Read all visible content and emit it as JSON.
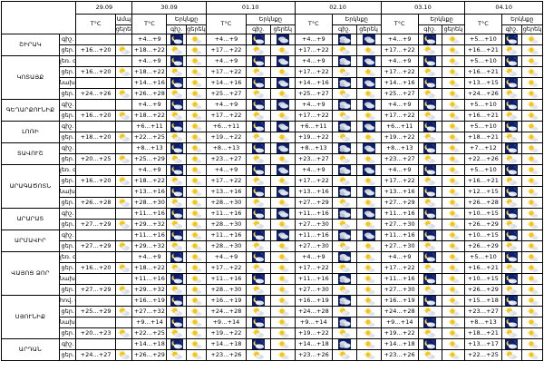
{
  "header": {
    "dates": [
      "29.09",
      "30.09",
      "01.10",
      "02.10",
      "03.10",
      "04.10"
    ],
    "temp_label": "T°C",
    "cloud_label": "Ամպ",
    "cloud_label_full": "Երկնքը",
    "day_short": "ցերեկ",
    "night_short": "գիշ."
  },
  "row_labels": {
    "night": "գիշ.",
    "day": "ցեր."
  },
  "regions": [
    {
      "name": "ՇԻՐԱԿ",
      "subs": [
        {
          "sub": "",
          "rows": [
            {
              "dn": "night",
              "t": [
                "",
                "+4…+9",
                "+4…+9",
                "+4…+9",
                "+4…+9",
                "+5…+10"
              ],
              "i": [
                "",
                "mc",
                "mc",
                "pc",
                "mc",
                "mc"
              ],
              "i2": [
                "",
                "sun",
                "cl",
                "cl",
                "sun",
                "sun"
              ]
            },
            {
              "dn": "day",
              "t": [
                "+16…+20",
                "+18…+22",
                "+17…+22",
                "+17…+22",
                "+17…+22",
                "+16…+21"
              ],
              "i": [
                "ps",
                "ps",
                "ps",
                "ps",
                "ps",
                "ps"
              ]
            }
          ]
        }
      ]
    },
    {
      "name": "ԿՈՏԱՅՔ",
      "subs": [
        {
          "sub": "լեռ.",
          "rows": [
            {
              "dn": "night",
              "t": [
                "",
                "+4…+9",
                "+4…+9",
                "+4…+9",
                "+4…+9",
                "+5…+10"
              ],
              "i": [
                "",
                "mc",
                "mc",
                "pc",
                "mc",
                "mc"
              ],
              "i2": [
                "",
                "sun",
                "cl",
                "cl",
                "sun",
                "sun"
              ]
            },
            {
              "dn": "day",
              "t": [
                "+16…+20",
                "+18…+22",
                "+17…+22",
                "+17…+22",
                "+17…+22",
                "+16…+21"
              ],
              "i": [
                "ps",
                "ps",
                "ps",
                "ps",
                "ps",
                "ps"
              ]
            }
          ]
        },
        {
          "sub": "նախ.",
          "rows": [
            {
              "dn": "night",
              "t": [
                "",
                "+14…+16",
                "+14…+16",
                "+14…+16",
                "+14…+16",
                "+13…+15"
              ],
              "i": [
                "",
                "mc",
                "mc",
                "pc",
                "mc",
                "mc"
              ],
              "i2": [
                "",
                "sun",
                "cl",
                "cl",
                "sun",
                "sun"
              ]
            },
            {
              "dn": "day",
              "t": [
                "+24…+26",
                "+26…+28",
                "+25…+27",
                "+25…+27",
                "+25…+27",
                "+24…+26"
              ],
              "i": [
                "ps",
                "ps",
                "ps",
                "ps",
                "ps",
                "ps"
              ]
            }
          ]
        }
      ]
    },
    {
      "name": "ԳԵՂԱՐՔՈՒՆԻՔ",
      "subs": [
        {
          "sub": "",
          "rows": [
            {
              "dn": "night",
              "t": [
                "",
                "+4…+9",
                "+4…+9",
                "+4…+9",
                "+4…+9",
                "+5…+10"
              ],
              "i": [
                "",
                "mc",
                "mc",
                "pc",
                "mc",
                "mc"
              ],
              "i2": [
                "",
                "sun",
                "cl",
                "cl",
                "sun",
                "sun"
              ]
            },
            {
              "dn": "day",
              "t": [
                "+16…+20",
                "+18…+22",
                "+17…+22",
                "+17…+22",
                "+17…+22",
                "+16…+21"
              ],
              "i": [
                "ps",
                "ps",
                "ps",
                "ps",
                "ps",
                "ps"
              ]
            }
          ]
        }
      ]
    },
    {
      "name": "ԼՈՌԻ",
      "subs": [
        {
          "sub": "",
          "rows": [
            {
              "dn": "night",
              "t": [
                "",
                "+6…+11",
                "+6…+11",
                "+6…+11",
                "+6…+11",
                "+5…+10"
              ],
              "i": [
                "",
                "mc",
                "mc",
                "pc",
                "mc",
                "mc"
              ],
              "i2": [
                "",
                "sun",
                "cl",
                "cl",
                "sun",
                "sun"
              ]
            },
            {
              "dn": "day",
              "t": [
                "+18…+20",
                "+22…+25",
                "+19…+22",
                "+19…+22",
                "+19…+22",
                "+18…+21"
              ],
              "i": [
                "ps",
                "ps",
                "ps",
                "ps",
                "ps",
                "ps"
              ]
            }
          ]
        }
      ]
    },
    {
      "name": "ՏԱՎՈՒՇ",
      "subs": [
        {
          "sub": "",
          "rows": [
            {
              "dn": "night",
              "t": [
                "",
                "+8…+13",
                "+8…+13",
                "+8…+13",
                "+8…+13",
                "+7…+12"
              ],
              "i": [
                "",
                "mc",
                "mc",
                "pc",
                "mc",
                "mc"
              ],
              "i2": [
                "",
                "sun",
                "cl",
                "cl",
                "sun",
                "sun"
              ]
            },
            {
              "dn": "day",
              "t": [
                "+20…+25",
                "+25…+29",
                "+23…+27",
                "+23…+27",
                "+23…+27",
                "+22…+26"
              ],
              "i": [
                "ps",
                "ps",
                "ps",
                "ps",
                "ps",
                "ps"
              ]
            }
          ]
        }
      ]
    },
    {
      "name": "ԱՐԱԳԱԾՈՏՆ",
      "subs": [
        {
          "sub": "լեռ.",
          "rows": [
            {
              "dn": "night",
              "t": [
                "",
                "+4…+9",
                "+4…+9",
                "+4…+9",
                "+4…+9",
                "+5…+10"
              ],
              "i": [
                "",
                "mc",
                "mc",
                "pc",
                "mc",
                "mc"
              ],
              "i2": [
                "",
                "sun",
                "cl",
                "cl",
                "sun",
                "sun"
              ]
            },
            {
              "dn": "day",
              "t": [
                "+16…+20",
                "+18…+22",
                "+17…+22",
                "+17…+22",
                "+17…+22",
                "+16…+21"
              ],
              "i": [
                "ps",
                "ps",
                "ps",
                "ps",
                "ps",
                "ps"
              ]
            }
          ]
        },
        {
          "sub": "նախ.",
          "rows": [
            {
              "dn": "night",
              "t": [
                "",
                "+13…+16",
                "+13…+16",
                "+13…+16",
                "+13…+16",
                "+12…+15"
              ],
              "i": [
                "",
                "mc",
                "mc",
                "pc",
                "mc",
                "mc"
              ],
              "i2": [
                "",
                "sun",
                "cl",
                "cl",
                "sun",
                "sun"
              ]
            },
            {
              "dn": "day",
              "t": [
                "+26…+28",
                "+28…+30",
                "+28…+30",
                "+27…+29",
                "+27…+29",
                "+26…+28"
              ],
              "i": [
                "ps",
                "ps",
                "ps",
                "ps",
                "ps",
                "ps"
              ]
            }
          ]
        }
      ]
    },
    {
      "name": "ԱՐԱՐԱՏ",
      "subs": [
        {
          "sub": "",
          "rows": [
            {
              "dn": "night",
              "t": [
                "",
                "+11…+16",
                "+11…+16",
                "+11…+16",
                "+11…+16",
                "+10…+15"
              ],
              "i": [
                "",
                "mc",
                "mc",
                "pc",
                "mc",
                "mc"
              ],
              "i2": [
                "",
                "sun",
                "cl",
                "cl",
                "sun",
                "sun"
              ]
            },
            {
              "dn": "day",
              "t": [
                "+27…+29",
                "+29…+32",
                "+28…+30",
                "+27…+30",
                "+27…+30",
                "+26…+29"
              ],
              "i": [
                "ps",
                "ps",
                "ps",
                "ps",
                "ps",
                "ps"
              ]
            }
          ]
        }
      ]
    },
    {
      "name": "ԱՐՄԱՎԻՐ",
      "subs": [
        {
          "sub": "",
          "rows": [
            {
              "dn": "night",
              "t": [
                "",
                "+11…+16",
                "+11…+16",
                "+11…+16",
                "+11…+16",
                "+10…+15"
              ],
              "i": [
                "",
                "mc",
                "mc",
                "pc",
                "mc",
                "mc"
              ],
              "i2": [
                "",
                "sun",
                "cl",
                "cl",
                "sun",
                "sun"
              ]
            },
            {
              "dn": "day",
              "t": [
                "+27…+29",
                "+29…+32",
                "+28…+30",
                "+27…+30",
                "+27…+30",
                "+26…+29"
              ],
              "i": [
                "ps",
                "ps",
                "ps",
                "ps",
                "ps",
                "ps"
              ]
            }
          ]
        }
      ]
    },
    {
      "name": "ՎԱՅՈՑ ՁՈՐ",
      "subs": [
        {
          "sub": "լեռ.",
          "rows": [
            {
              "dn": "night",
              "t": [
                "",
                "+4…+9",
                "+4…+9",
                "+4…+9",
                "+4…+9",
                "+5…+10"
              ],
              "i": [
                "",
                "mc",
                "mc",
                "pc",
                "mc",
                "mc"
              ],
              "i2": [
                "",
                "sun",
                "sun",
                "sun",
                "sun",
                "sun"
              ]
            },
            {
              "dn": "day",
              "t": [
                "+16…+20",
                "+18…+22",
                "+17…+22",
                "+17…+22",
                "+17…+22",
                "+16…+21"
              ],
              "i": [
                "ps",
                "ps",
                "ps",
                "ps",
                "ps",
                "ps"
              ]
            }
          ]
        },
        {
          "sub": "նախ.",
          "rows": [
            {
              "dn": "night",
              "t": [
                "",
                "+11…+16",
                "+11…+16",
                "+11…+16",
                "+11…+16",
                "+10…+15"
              ],
              "i": [
                "",
                "mc",
                "mc",
                "pc",
                "mc",
                "mc"
              ],
              "i2": [
                "",
                "sun",
                "sun",
                "sun",
                "sun",
                "sun"
              ]
            },
            {
              "dn": "day",
              "t": [
                "+27…+29",
                "+29…+32",
                "+28…+30",
                "+27…+30",
                "+27…+30",
                "+26…+29"
              ],
              "i": [
                "ps",
                "ps",
                "ps",
                "ps",
                "ps",
                "ps"
              ]
            }
          ]
        }
      ]
    },
    {
      "name": "ՍՅՈՒՆԻՔ",
      "subs": [
        {
          "sub": "հով.",
          "rows": [
            {
              "dn": "night",
              "t": [
                "",
                "+16…+19",
                "+16…+19",
                "+16…+19",
                "+16…+19",
                "+15…+18"
              ],
              "i": [
                "",
                "mc",
                "mc",
                "pc",
                "mc",
                "mc"
              ],
              "i2": [
                "",
                "sun",
                "sun",
                "sun",
                "sun",
                "sun"
              ]
            },
            {
              "dn": "day",
              "t": [
                "+25…+29",
                "+27…+32",
                "+24…+28",
                "+24…+28",
                "+24…+28",
                "+23…+27"
              ],
              "i": [
                "ps",
                "ps",
                "ps",
                "ps",
                "ps",
                "ps"
              ]
            }
          ]
        },
        {
          "sub": "նախ.",
          "rows": [
            {
              "dn": "night",
              "t": [
                "",
                "+9…+14",
                "+9…+14",
                "+9…+14",
                "+9…+14",
                "+8…+13"
              ],
              "i": [
                "",
                "mc",
                "mc",
                "pc",
                "mc",
                "mc"
              ],
              "i2": [
                "",
                "sun",
                "sun",
                "sun",
                "sun",
                "sun"
              ]
            },
            {
              "dn": "day",
              "t": [
                "+20…+23",
                "+22…+25",
                "+19…+22",
                "+19…+22",
                "+19…+22",
                "+18…+21"
              ],
              "i": [
                "ps",
                "ps",
                "ps",
                "ps",
                "ps",
                "ps"
              ]
            }
          ]
        }
      ]
    },
    {
      "name": "ԱՐԴԱՆ",
      "subs": [
        {
          "sub": "",
          "rows": [
            {
              "dn": "night",
              "t": [
                "",
                "+14…+18",
                "+14…+18",
                "+14…+18",
                "+14…+18",
                "+13…+17"
              ],
              "i": [
                "",
                "mc",
                "mc",
                "pc",
                "mc",
                "mc"
              ],
              "i2": [
                "",
                "sun",
                "sun",
                "sun",
                "sun",
                "sun"
              ]
            },
            {
              "dn": "day",
              "t": [
                "+24…+27",
                "+26…+29",
                "+23…+26",
                "+23…+26",
                "+23…+26",
                "+22…+25"
              ],
              "i": [
                "ps",
                "ps",
                "ps",
                "ps",
                "ps",
                "ps"
              ]
            }
          ]
        }
      ]
    }
  ]
}
